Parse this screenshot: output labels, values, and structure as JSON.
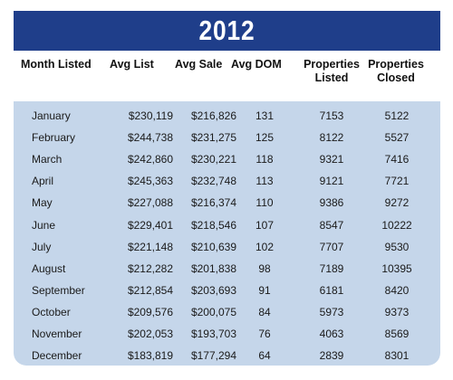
{
  "title": "2012",
  "columns": {
    "month": "Month Listed",
    "avg_list": "Avg List",
    "avg_sale": "Avg Sale",
    "avg_dom": "Avg DOM",
    "listed_line1": "Properties",
    "listed_line2": "Listed",
    "closed_line1": "Properties",
    "closed_line2": "Closed"
  },
  "rows": [
    {
      "month": "January",
      "avg_list": "$230,119",
      "avg_sale": "$216,826",
      "avg_dom": "131",
      "listed": "7153",
      "closed": "5122"
    },
    {
      "month": "February",
      "avg_list": "$244,738",
      "avg_sale": "$231,275",
      "avg_dom": "125",
      "listed": "8122",
      "closed": "5527"
    },
    {
      "month": "March",
      "avg_list": "$242,860",
      "avg_sale": "$230,221",
      "avg_dom": "118",
      "listed": "9321",
      "closed": "7416"
    },
    {
      "month": "April",
      "avg_list": "$245,363",
      "avg_sale": "$232,748",
      "avg_dom": "113",
      "listed": "9121",
      "closed": "7721"
    },
    {
      "month": "May",
      "avg_list": "$227,088",
      "avg_sale": "$216,374",
      "avg_dom": "110",
      "listed": "9386",
      "closed": "9272"
    },
    {
      "month": "June",
      "avg_list": "$229,401",
      "avg_sale": "$218,546",
      "avg_dom": "107",
      "listed": "8547",
      "closed": "10222"
    },
    {
      "month": "July",
      "avg_list": "$221,148",
      "avg_sale": "$210,639",
      "avg_dom": "102",
      "listed": "7707",
      "closed": "9530"
    },
    {
      "month": "August",
      "avg_list": "$212,282",
      "avg_sale": "$201,838",
      "avg_dom": "98",
      "listed": "7189",
      "closed": "10395"
    },
    {
      "month": "September",
      "avg_list": "$212,854",
      "avg_sale": "$203,693",
      "avg_dom": "91",
      "listed": "6181",
      "closed": "8420"
    },
    {
      "month": "October",
      "avg_list": "$209,576",
      "avg_sale": "$200,075",
      "avg_dom": "84",
      "listed": "5973",
      "closed": "9373"
    },
    {
      "month": "November",
      "avg_list": "$202,053",
      "avg_sale": "$193,703",
      "avg_dom": "76",
      "listed": "4063",
      "closed": "8569"
    },
    {
      "month": "December",
      "avg_list": "$183,819",
      "avg_sale": "$177,294",
      "avg_dom": "64",
      "listed": "2839",
      "closed": "8301"
    }
  ],
  "colors": {
    "title_bar": "#1f3e8a",
    "table_body": "#c5d6ea",
    "title_text": "#ffffff"
  }
}
